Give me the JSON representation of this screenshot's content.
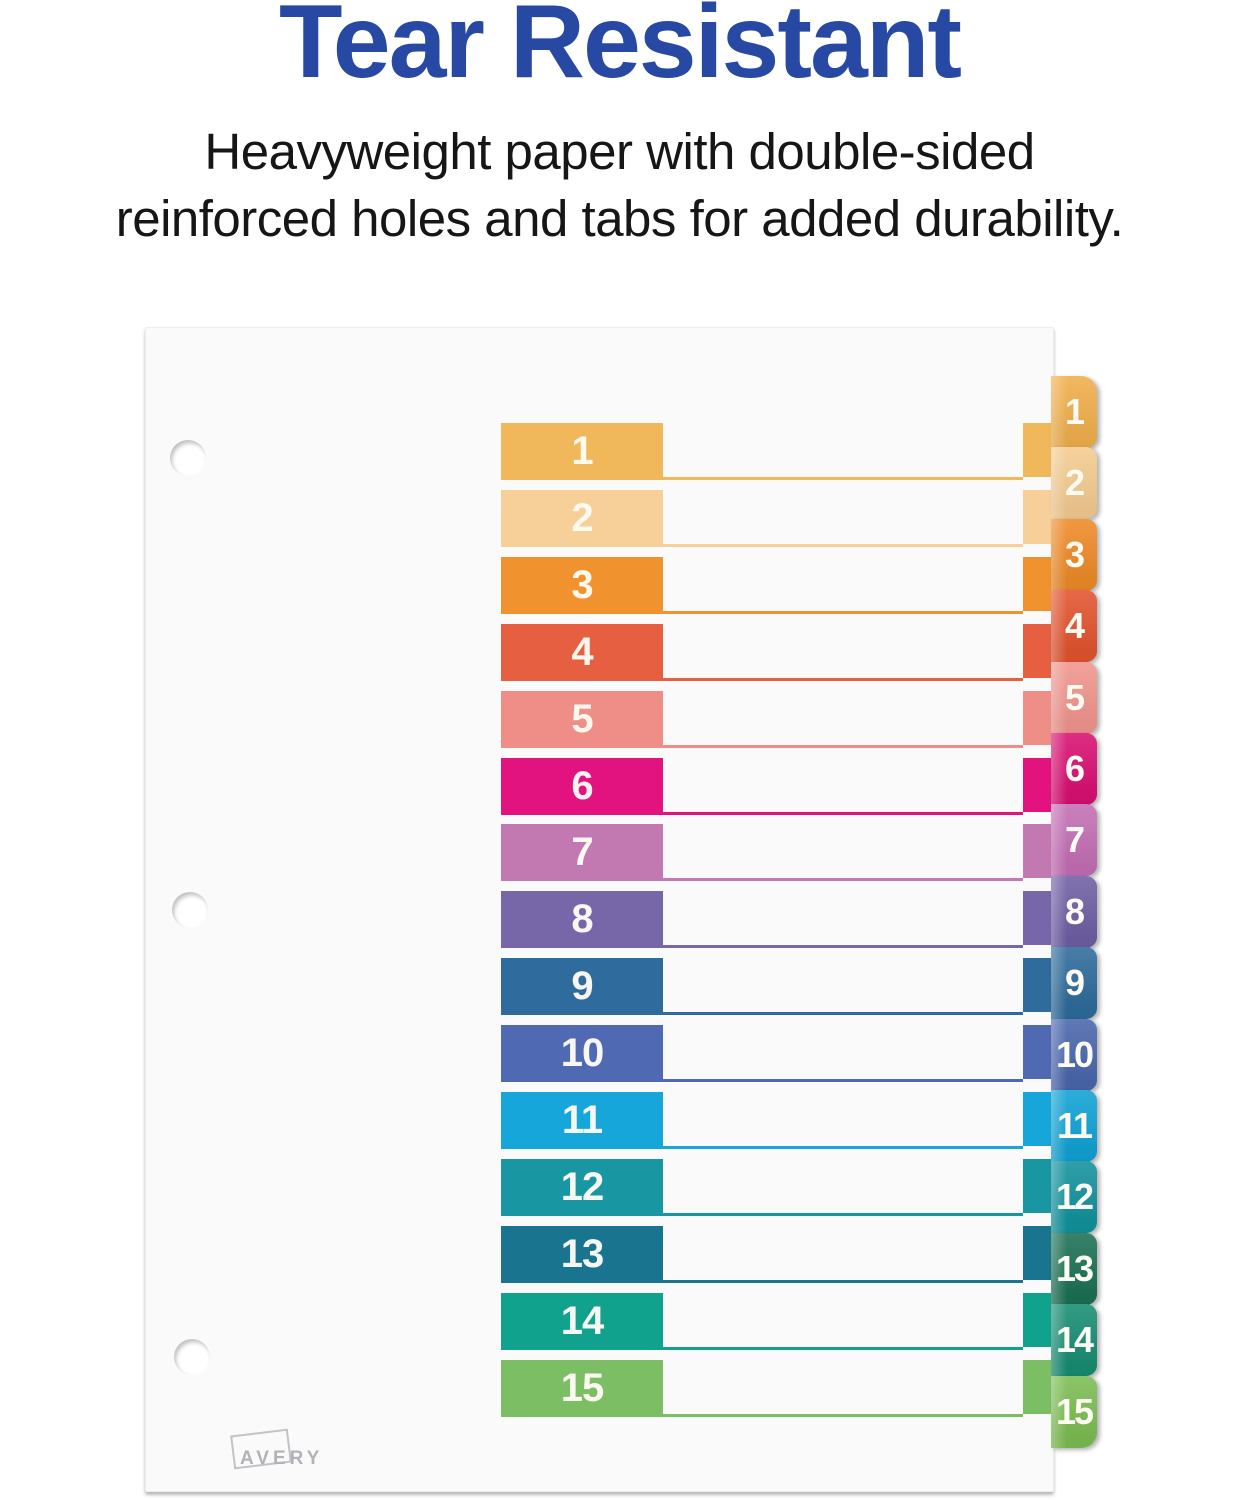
{
  "header": {
    "title": "Tear Resistant",
    "title_color": "#2849A3",
    "subtitle_line1": "Heavyweight paper with double-sided",
    "subtitle_line2": "reinforced holes and tabs for added durability.",
    "subtitle_color": "#161616"
  },
  "sheet": {
    "brand": "AVERY",
    "brand_color": "#B3B3B7",
    "hole_count": 3,
    "tab_number_text_color": "#FDFBF2",
    "rows": [
      {
        "number": "1",
        "bar_color": "#F0B85A",
        "tab_color": "#F0AF4C"
      },
      {
        "number": "2",
        "bar_color": "#F6CF99",
        "tab_color": "#F4CB90"
      },
      {
        "number": "3",
        "bar_color": "#F0922D",
        "tab_color": "#EE8A28"
      },
      {
        "number": "4",
        "bar_color": "#E75F41",
        "tab_color": "#E2542F"
      },
      {
        "number": "5",
        "bar_color": "#EF8E86",
        "tab_color": "#F0958D"
      },
      {
        "number": "6",
        "bar_color": "#E2137F",
        "tab_color": "#D91072"
      },
      {
        "number": "7",
        "bar_color": "#C279B1",
        "tab_color": "#C36FB4"
      },
      {
        "number": "8",
        "bar_color": "#7767A9",
        "tab_color": "#6F5FA4"
      },
      {
        "number": "9",
        "bar_color": "#2F6B9D",
        "tab_color": "#2E6B9B"
      },
      {
        "number": "10",
        "bar_color": "#5069B3",
        "tab_color": "#4A67AC"
      },
      {
        "number": "11",
        "bar_color": "#16A6D9",
        "tab_color": "#10A2D4"
      },
      {
        "number": "12",
        "bar_color": "#1897A2",
        "tab_color": "#12929D"
      },
      {
        "number": "13",
        "bar_color": "#19748F",
        "tab_color": "#1C7155"
      },
      {
        "number": "14",
        "bar_color": "#10A28D",
        "tab_color": "#188D73"
      },
      {
        "number": "15",
        "bar_color": "#7CBE63",
        "tab_color": "#7CBC52"
      }
    ]
  }
}
